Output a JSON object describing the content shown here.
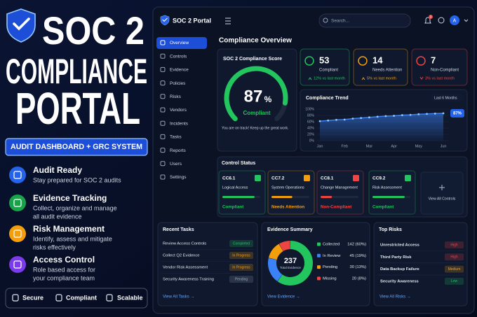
{
  "promo": {
    "title": [
      "SOC 2",
      "COMPLIANCE",
      "PORTAL"
    ],
    "badge": "AUDIT DASHBOARD + GRC SYSTEM",
    "features": [
      {
        "title": "Audit Ready",
        "desc": [
          "Stay prepared for SOC 2 audits"
        ],
        "color": "#2563eb"
      },
      {
        "title": "Evidence Tracking",
        "desc": [
          "Collect, organize and manage",
          "all audit evidence"
        ],
        "color": "#16a34a"
      },
      {
        "title": "Risk Management",
        "desc": [
          "Identify, assess and mitigate",
          "risks effectively"
        ],
        "color": "#f59e0b"
      },
      {
        "title": "Access Control",
        "desc": [
          "Role based access for",
          "your compliance team"
        ],
        "color": "#7c3aed"
      }
    ],
    "footer": [
      "Secure",
      "Compliant",
      "Scalable"
    ]
  },
  "app": {
    "brand": "SOC 2 Portal",
    "search": "Search...",
    "notifications": "3",
    "avatar": "A",
    "nav": [
      "Overview",
      "Controls",
      "Evidence",
      "Policies",
      "Risks",
      "Vendors",
      "Incidents",
      "Tasks",
      "Reports",
      "Users",
      "Settings"
    ],
    "page_title": "Compliance Overview",
    "score": {
      "title": "SOC 2 Compliance Score",
      "value": 87,
      "unit": "%",
      "status": "Compliant",
      "note": "You are on track! Keep up the great work."
    },
    "stats": [
      {
        "value": 53,
        "label": "Compliant",
        "delta": "12% vs last month",
        "direction": "up",
        "color": "#22c55e"
      },
      {
        "value": 14,
        "label": "Needs Attention",
        "delta": "5% vs last month",
        "direction": "up",
        "color": "#f59e0b"
      },
      {
        "value": 7,
        "label": "Non-Compliant",
        "delta": "3% vs last month",
        "direction": "down",
        "color": "#ef4444"
      }
    ],
    "trend": {
      "type": "line",
      "title": "Compliance Trend",
      "range": "Last 6 Months",
      "categories": [
        "Jan",
        null,
        null,
        "Feb",
        null,
        null,
        "Mar",
        null,
        null,
        "Apr",
        null,
        null,
        "May",
        null,
        null,
        "Jun"
      ],
      "values": [
        62,
        64,
        66,
        67,
        70,
        72,
        74,
        76,
        78,
        79,
        81,
        82,
        84,
        85,
        86,
        87
      ],
      "ylim": [
        0,
        100
      ],
      "yticks": [
        {
          "value": 0,
          "label": "0%"
        },
        {
          "value": 20,
          "label": "20%"
        },
        {
          "value": 40,
          "label": "40%"
        },
        {
          "value": 60,
          "label": "60%"
        },
        {
          "value": 80,
          "label": "80%"
        },
        {
          "value": 100,
          "label": "100%"
        }
      ],
      "end_label": "87%",
      "color": "#3b82f6"
    },
    "controls": {
      "title": "Control Status",
      "more": "View All Controls",
      "items": [
        {
          "code": "CC6.1",
          "name": "Logical Access",
          "status": "Compliant",
          "progress": 85,
          "color": "#22c55e"
        },
        {
          "code": "CC7.2",
          "name": "System Operations",
          "status": "Needs Attention",
          "progress": 55,
          "color": "#f59e0b"
        },
        {
          "code": "CC8.1",
          "name": "Change Management",
          "status": "Non-Compliant",
          "progress": 30,
          "color": "#ef4444"
        },
        {
          "code": "CC9.2",
          "name": "Risk Assessment",
          "status": "Compliant",
          "progress": 85,
          "color": "#22c55e"
        }
      ]
    },
    "tasks": {
      "title": "Recent Tasks",
      "link": "View All Tasks →",
      "items": [
        {
          "name": "Review Access Controls",
          "status": "Completed",
          "color": "#22c55e"
        },
        {
          "name": "Collect Q2 Evidence",
          "status": "In Progress",
          "color": "#f59e0b"
        },
        {
          "name": "Vendor Risk Assessment",
          "status": "In Progress",
          "color": "#f59e0b"
        },
        {
          "name": "Security Awareness Training",
          "status": "Pending",
          "color": "#94a3b8"
        }
      ]
    },
    "evidence": {
      "title": "Evidence Summary",
      "total": 237,
      "total_label": "Total Evidence",
      "link": "View Evidence →",
      "items": [
        {
          "name": "Collected",
          "value": 142,
          "value_label": "142 (60%)",
          "color": "#22c55e"
        },
        {
          "name": "In Review",
          "value": 45,
          "value_label": "45 (19%)",
          "color": "#3b82f6"
        },
        {
          "name": "Pending",
          "value": 30,
          "value_label": "30 (13%)",
          "color": "#f59e0b"
        },
        {
          "name": "Missing",
          "value": 20,
          "value_label": "20 (8%)",
          "color": "#ef4444"
        }
      ]
    },
    "risks": {
      "title": "Top Risks",
      "link": "View All Risks →",
      "items": [
        {
          "name": "Unrestricted Access",
          "level": "High",
          "color": "#ef4444"
        },
        {
          "name": "Third Party Risk",
          "level": "High",
          "color": "#ef4444"
        },
        {
          "name": "Data Backup Failure",
          "level": "Medium",
          "color": "#f59e0b"
        },
        {
          "name": "Security Awareness",
          "level": "Low",
          "color": "#22c55e"
        }
      ]
    }
  }
}
